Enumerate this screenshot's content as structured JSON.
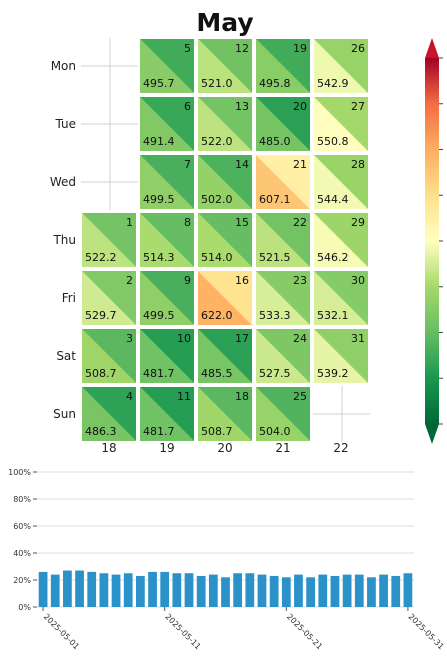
{
  "chart_data": [
    {
      "type": "heatmap",
      "title": "May",
      "row_labels": [
        "Mon",
        "Tue",
        "Wed",
        "Thu",
        "Fri",
        "Sat",
        "Sun"
      ],
      "week_labels": [
        "18",
        "19",
        "20",
        "21",
        "22"
      ],
      "colormap": "RdYlGn_r",
      "colorbar": "right",
      "cells": [
        {
          "day": 1,
          "week": "18",
          "weekday": "Thu",
          "value": "522.2"
        },
        {
          "day": 2,
          "week": "18",
          "weekday": "Fri",
          "value": "529.7"
        },
        {
          "day": 3,
          "week": "18",
          "weekday": "Sat",
          "value": "508.7"
        },
        {
          "day": 4,
          "week": "18",
          "weekday": "Sun",
          "value": "486.3"
        },
        {
          "day": 5,
          "week": "19",
          "weekday": "Mon",
          "value": "495.7"
        },
        {
          "day": 6,
          "week": "19",
          "weekday": "Tue",
          "value": "491.4"
        },
        {
          "day": 7,
          "week": "19",
          "weekday": "Wed",
          "value": "499.5"
        },
        {
          "day": 8,
          "week": "19",
          "weekday": "Thu",
          "value": "514.3"
        },
        {
          "day": 9,
          "week": "19",
          "weekday": "Fri",
          "value": "499.5"
        },
        {
          "day": 10,
          "week": "19",
          "weekday": "Sat",
          "value": "481.7"
        },
        {
          "day": 11,
          "week": "19",
          "weekday": "Sun",
          "value": "481.7"
        },
        {
          "day": 12,
          "week": "20",
          "weekday": "Mon",
          "value": "521.0"
        },
        {
          "day": 13,
          "week": "20",
          "weekday": "Tue",
          "value": "522.0"
        },
        {
          "day": 14,
          "week": "20",
          "weekday": "Wed",
          "value": "502.0"
        },
        {
          "day": 15,
          "week": "20",
          "weekday": "Thu",
          "value": "514.0"
        },
        {
          "day": 16,
          "week": "20",
          "weekday": "Fri",
          "value": "622.0"
        },
        {
          "day": 17,
          "week": "20",
          "weekday": "Sat",
          "value": "485.5"
        },
        {
          "day": 18,
          "week": "20",
          "weekday": "Sun",
          "value": "508.7"
        },
        {
          "day": 19,
          "week": "21",
          "weekday": "Mon",
          "value": "495.8"
        },
        {
          "day": 20,
          "week": "21",
          "weekday": "Tue",
          "value": "485.0"
        },
        {
          "day": 21,
          "week": "21",
          "weekday": "Wed",
          "value": "607.1"
        },
        {
          "day": 22,
          "week": "21",
          "weekday": "Thu",
          "value": "521.5"
        },
        {
          "day": 23,
          "week": "21",
          "weekday": "Fri",
          "value": "533.3"
        },
        {
          "day": 24,
          "week": "21",
          "weekday": "Sat",
          "value": "527.5"
        },
        {
          "day": 25,
          "week": "21",
          "weekday": "Sun",
          "value": "504.0"
        },
        {
          "day": 26,
          "week": "22",
          "weekday": "Mon",
          "value": "542.9"
        },
        {
          "day": 27,
          "week": "22",
          "weekday": "Tue",
          "value": "550.8"
        },
        {
          "day": 28,
          "week": "22",
          "weekday": "Wed",
          "value": "544.4"
        },
        {
          "day": 29,
          "week": "22",
          "weekday": "Thu",
          "value": "546.2"
        },
        {
          "day": 30,
          "week": "22",
          "weekday": "Fri",
          "value": "532.1"
        },
        {
          "day": 31,
          "week": "22",
          "weekday": "Sat",
          "value": "539.2"
        }
      ]
    },
    {
      "type": "bar",
      "x": [
        "2025-05-01",
        "2025-05-02",
        "2025-05-03",
        "2025-05-04",
        "2025-05-05",
        "2025-05-06",
        "2025-05-07",
        "2025-05-08",
        "2025-05-09",
        "2025-05-10",
        "2025-05-11",
        "2025-05-12",
        "2025-05-13",
        "2025-05-14",
        "2025-05-15",
        "2025-05-16",
        "2025-05-17",
        "2025-05-18",
        "2025-05-19",
        "2025-05-20",
        "2025-05-21",
        "2025-05-22",
        "2025-05-23",
        "2025-05-24",
        "2025-05-25",
        "2025-05-26",
        "2025-05-27",
        "2025-05-28",
        "2025-05-29",
        "2025-05-30",
        "2025-05-31"
      ],
      "values": [
        0.26,
        0.24,
        0.27,
        0.27,
        0.26,
        0.25,
        0.24,
        0.25,
        0.23,
        0.26,
        0.26,
        0.25,
        0.25,
        0.23,
        0.24,
        0.22,
        0.25,
        0.25,
        0.24,
        0.23,
        0.22,
        0.24,
        0.22,
        0.24,
        0.23,
        0.24,
        0.24,
        0.22,
        0.24,
        0.23,
        0.25
      ],
      "color": "#2b91c9",
      "y_ticks": [
        "0%",
        "20%",
        "40%",
        "60%",
        "80%",
        "100%"
      ],
      "x_ticks": [
        "2025-05-01",
        "2025-05-11",
        "2025-05-21",
        "2025-05-31"
      ],
      "ylim": [
        0,
        1
      ],
      "grid": true
    }
  ]
}
